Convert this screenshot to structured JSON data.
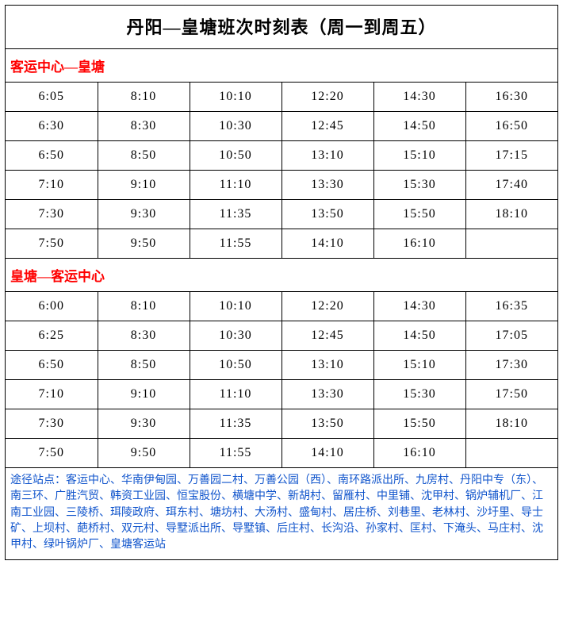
{
  "title": "丹阳—皇塘班次时刻表（周一到周五）",
  "section1": {
    "header": "客运中心—皇塘",
    "rows": [
      [
        "6:05",
        "8:10",
        "10:10",
        "12:20",
        "14:30",
        "16:30"
      ],
      [
        "6:30",
        "8:30",
        "10:30",
        "12:45",
        "14:50",
        "16:50"
      ],
      [
        "6:50",
        "8:50",
        "10:50",
        "13:10",
        "15:10",
        "17:15"
      ],
      [
        "7:10",
        "9:10",
        "11:10",
        "13:30",
        "15:30",
        "17:40"
      ],
      [
        "7:30",
        "9:30",
        "11:35",
        "13:50",
        "15:50",
        "18:10"
      ],
      [
        "7:50",
        "9:50",
        "11:55",
        "14:10",
        "16:10",
        ""
      ]
    ]
  },
  "section2": {
    "header": "皇塘—客运中心",
    "rows": [
      [
        "6:00",
        "8:10",
        "10:10",
        "12:20",
        "14:30",
        "16:35"
      ],
      [
        "6:25",
        "8:30",
        "10:30",
        "12:45",
        "14:50",
        "17:05"
      ],
      [
        "6:50",
        "8:50",
        "10:50",
        "13:10",
        "15:10",
        "17:30"
      ],
      [
        "7:10",
        "9:10",
        "11:10",
        "13:30",
        "15:30",
        "17:50"
      ],
      [
        "7:30",
        "9:30",
        "11:35",
        "13:50",
        "15:50",
        "18:10"
      ],
      [
        "7:50",
        "9:50",
        "11:55",
        "14:10",
        "16:10",
        ""
      ]
    ]
  },
  "footer": "途径站点：客运中心、华南伊甸园、万善园二村、万善公园（西）、南环路派出所、九房村、丹阳中专（东）、南三环、广胜汽贸、韩资工业园、恒宝股份、横塘中学、新胡村、留雁村、中里铺、沈甲村、锅炉辅机厂、江南工业园、三陵桥、珥陵政府、珥东村、塘坊村、大汤村、盛甸村、居庄桥、刘巷里、老林村、沙圩里、导士矿、上坝村、葩桥村、双元村、导墅派出所、导墅镇、后庄村、长沟沿、孙家村、匡村、下淹头、马庄村、沈甲村、绿叶锅炉厂、皇塘客运站",
  "styling": {
    "title_color": "#000000",
    "section_header_color": "#ff0000",
    "footer_color": "#1155cc",
    "border_color": "#000000",
    "background_color": "#ffffff",
    "title_fontsize": 22,
    "cell_fontsize": 16,
    "footer_fontsize": 14,
    "columns": 6
  }
}
